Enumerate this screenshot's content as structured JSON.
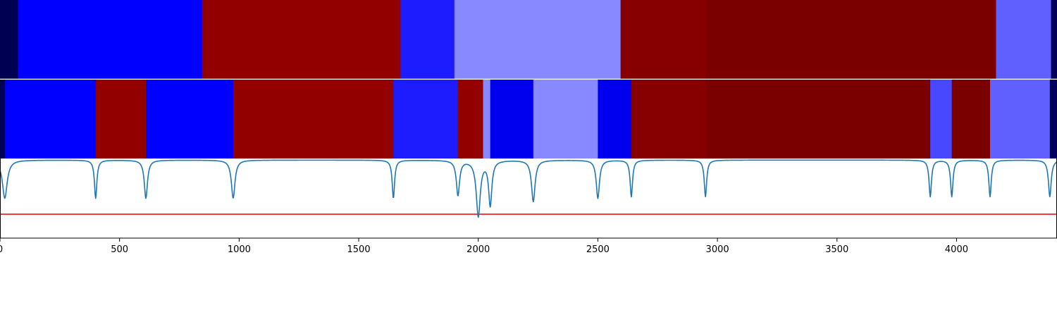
{
  "chart_data": {
    "type": "heatmap",
    "xlim": [
      0,
      4420
    ],
    "x_ticks": [
      0,
      500,
      1000,
      1500,
      2000,
      2500,
      3000,
      3500,
      4000
    ],
    "tracks": [
      {
        "segments": [
          {
            "start": 0,
            "end": 75,
            "color": "#000052"
          },
          {
            "start": 75,
            "end": 845,
            "color": "#0000ff"
          },
          {
            "start": 845,
            "end": 1675,
            "color": "#920000"
          },
          {
            "start": 1675,
            "end": 1900,
            "color": "#1c1cff"
          },
          {
            "start": 1900,
            "end": 2595,
            "color": "#8888ff"
          },
          {
            "start": 2595,
            "end": 2950,
            "color": "#860000"
          },
          {
            "start": 2950,
            "end": 4165,
            "color": "#7a0000"
          },
          {
            "start": 4165,
            "end": 4395,
            "color": "#6060ff"
          },
          {
            "start": 4395,
            "end": 4420,
            "color": "#00005a"
          }
        ]
      },
      {
        "segments": [
          {
            "start": 0,
            "end": 20,
            "color": "#000052"
          },
          {
            "start": 20,
            "end": 400,
            "color": "#0000ff"
          },
          {
            "start": 400,
            "end": 610,
            "color": "#920000"
          },
          {
            "start": 610,
            "end": 975,
            "color": "#0000ff"
          },
          {
            "start": 975,
            "end": 1645,
            "color": "#920000"
          },
          {
            "start": 1645,
            "end": 1915,
            "color": "#1c1cff"
          },
          {
            "start": 1915,
            "end": 2020,
            "color": "#920000"
          },
          {
            "start": 2020,
            "end": 2050,
            "color": "#8888ff"
          },
          {
            "start": 2050,
            "end": 2230,
            "color": "#0000ee"
          },
          {
            "start": 2230,
            "end": 2500,
            "color": "#8888ff"
          },
          {
            "start": 2500,
            "end": 2640,
            "color": "#0000ee"
          },
          {
            "start": 2640,
            "end": 2950,
            "color": "#860000"
          },
          {
            "start": 2950,
            "end": 3890,
            "color": "#7a0000"
          },
          {
            "start": 3890,
            "end": 3980,
            "color": "#4848ff"
          },
          {
            "start": 3980,
            "end": 4140,
            "color": "#7a0000"
          },
          {
            "start": 4140,
            "end": 4390,
            "color": "#6060ff"
          },
          {
            "start": 4390,
            "end": 4420,
            "color": "#00005a"
          }
        ]
      }
    ],
    "signal": {
      "color": "#1f77b4",
      "ylim": [
        0,
        1
      ],
      "baseline": 0.98,
      "dips": [
        {
          "x": 20,
          "depth": 0.48,
          "width": 12
        },
        {
          "x": 400,
          "depth": 0.48,
          "width": 6
        },
        {
          "x": 610,
          "depth": 0.48,
          "width": 8
        },
        {
          "x": 975,
          "depth": 0.48,
          "width": 9
        },
        {
          "x": 1645,
          "depth": 0.48,
          "width": 6
        },
        {
          "x": 1915,
          "depth": 0.44,
          "width": 8
        },
        {
          "x": 2000,
          "depth": 0.7,
          "width": 10
        },
        {
          "x": 2050,
          "depth": 0.56,
          "width": 8
        },
        {
          "x": 2230,
          "depth": 0.52,
          "width": 9
        },
        {
          "x": 2500,
          "depth": 0.48,
          "width": 8
        },
        {
          "x": 2640,
          "depth": 0.46,
          "width": 6
        },
        {
          "x": 2950,
          "depth": 0.46,
          "width": 6
        },
        {
          "x": 3890,
          "depth": 0.46,
          "width": 6
        },
        {
          "x": 3980,
          "depth": 0.46,
          "width": 6
        },
        {
          "x": 4140,
          "depth": 0.46,
          "width": 6
        },
        {
          "x": 4390,
          "depth": 0.46,
          "width": 7
        }
      ],
      "threshold": {
        "y": 0.3,
        "color": "#e31a1c"
      }
    }
  }
}
